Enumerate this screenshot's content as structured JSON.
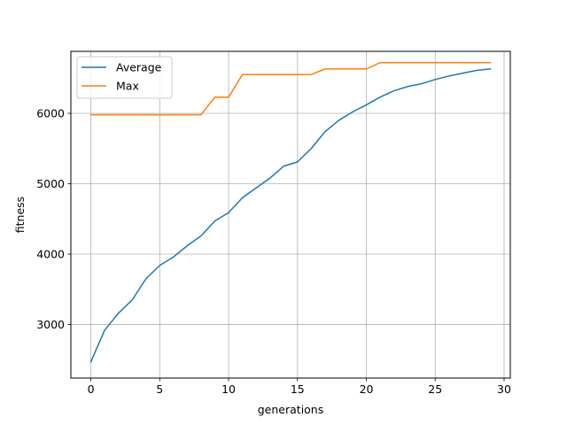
{
  "chart_data": {
    "type": "line",
    "title": "",
    "xlabel": "generations",
    "ylabel": "fitness",
    "xlim": [
      -1.45,
      30.45
    ],
    "ylim": [
      2240,
      6880
    ],
    "xticks": [
      0,
      5,
      10,
      15,
      20,
      25,
      30
    ],
    "yticks": [
      3000,
      4000,
      5000,
      6000
    ],
    "grid": true,
    "legend_position": "top-left",
    "x": [
      0,
      1,
      2,
      3,
      4,
      5,
      6,
      7,
      8,
      9,
      10,
      11,
      12,
      13,
      14,
      15,
      16,
      17,
      18,
      19,
      20,
      21,
      22,
      23,
      24,
      25,
      26,
      27,
      28,
      29
    ],
    "series": [
      {
        "name": "Average",
        "color": "#1f77b4",
        "values": [
          2470,
          2920,
          3160,
          3350,
          3650,
          3840,
          3960,
          4120,
          4260,
          4470,
          4590,
          4800,
          4940,
          5080,
          5250,
          5310,
          5500,
          5740,
          5900,
          6020,
          6120,
          6230,
          6320,
          6380,
          6420,
          6480,
          6530,
          6570,
          6610,
          6630
        ]
      },
      {
        "name": "Max",
        "color": "#ff7f0e",
        "values": [
          5980,
          5980,
          5980,
          5980,
          5980,
          5980,
          5980,
          5980,
          5980,
          6230,
          6230,
          6550,
          6550,
          6550,
          6550,
          6550,
          6550,
          6630,
          6630,
          6630,
          6630,
          6720,
          6720,
          6720,
          6720,
          6720,
          6720,
          6720,
          6720,
          6720
        ]
      }
    ]
  }
}
